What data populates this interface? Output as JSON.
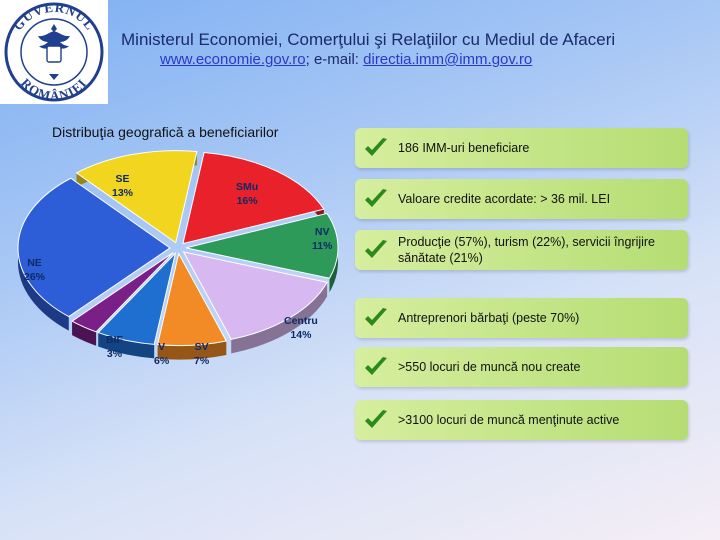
{
  "logo": {
    "text_top": "GUVERNUL",
    "text_bottom": "ROMÂNIEI",
    "icon": "romanian-coat-of-arms"
  },
  "header": {
    "title": "Ministerul Economiei, Comerţului şi Relaţiilor cu Mediul de Afaceri",
    "website": "www.economie.gov.ro",
    "separator": "; e-mail: ",
    "email": "directia.imm@imm.gov.ro"
  },
  "chart_title": "Distribuţia geografică a beneficiarilor",
  "chart_data": {
    "type": "pie",
    "title": "Distribuţia geografică a beneficiarilor",
    "slices": [
      {
        "name": "SMu",
        "value": 16,
        "label": "16%",
        "color": "#e8212b"
      },
      {
        "name": "NV",
        "value": 11,
        "label": "11%",
        "color": "#2e9a5a"
      },
      {
        "name": "Centru",
        "value": 14,
        "label": "14%",
        "color": "#d7b8f0"
      },
      {
        "name": "SV",
        "value": 7,
        "label": "7%",
        "color": "#f28a26"
      },
      {
        "name": "V",
        "value": 6,
        "label": "6%",
        "color": "#1f6fd1"
      },
      {
        "name": "BIF",
        "value": 3,
        "label": "3%",
        "color": "#7a1f87"
      },
      {
        "name": "NE",
        "value": 26,
        "label": "26%",
        "color": "#2d5ed8"
      },
      {
        "name": "SE",
        "value": 13,
        "label": "13%",
        "color": "#f2d51f"
      }
    ]
  },
  "highlights": [
    {
      "text": "186 IMM-uri beneficiare",
      "icon": "checkmark-icon"
    },
    {
      "text": "Valoare credite acordate: > 36 mil. LEI",
      "icon": "checkmark-icon"
    },
    {
      "text": "Producţie (57%), turism (22%), servicii îngrijire sănătate (21%)",
      "icon": "checkmark-icon"
    },
    {
      "text": "Antreprenori bărbaţi (peste 70%)",
      "icon": "checkmark-icon"
    },
    {
      "text": ">550 locuri de muncă nou create",
      "icon": "checkmark-icon"
    },
    {
      "text": ">3100 locuri de muncă menţinute active",
      "icon": "checkmark-icon"
    }
  ],
  "colors": {
    "title": "#1a2a6c",
    "link": "#2a39c8",
    "bar": "#c6e68a",
    "check": "#2c8a1a",
    "label": "#0d2a66"
  }
}
